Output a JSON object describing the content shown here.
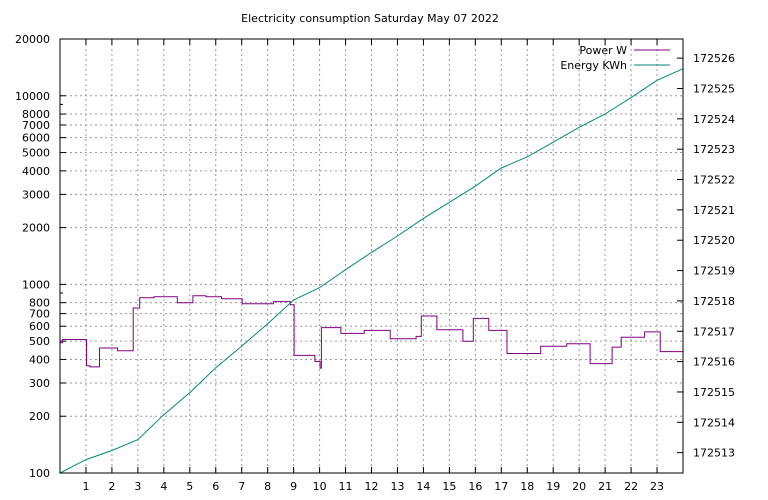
{
  "chart_data": {
    "type": "line",
    "title": "Electricity consumption Saturday May 07 2022",
    "xlabel": "",
    "ylabel": "",
    "y2label": "",
    "x_ticks": [
      "1",
      "2",
      "3",
      "4",
      "5",
      "6",
      "7",
      "8",
      "9",
      "10",
      "11",
      "12",
      "13",
      "14",
      "15",
      "16",
      "17",
      "18",
      "19",
      "20",
      "21",
      "22",
      "23"
    ],
    "xlim": [
      0,
      24
    ],
    "ylim": [
      100,
      20000
    ],
    "y_scale": "log",
    "y_ticks": [
      {
        "v": 100,
        "label": "100"
      },
      {
        "v": 200,
        "label": "200"
      },
      {
        "v": 300,
        "label": "300"
      },
      {
        "v": 400,
        "label": "400"
      },
      {
        "v": 500,
        "label": "500"
      },
      {
        "v": 600,
        "label": "600"
      },
      {
        "v": 700,
        "label": "700"
      },
      {
        "v": 800,
        "label": "800"
      },
      {
        "v": 1000,
        "label": "1000"
      },
      {
        "v": 2000,
        "label": "2000"
      },
      {
        "v": 3000,
        "label": "3000"
      },
      {
        "v": 4000,
        "label": "4000"
      },
      {
        "v": 5000,
        "label": "5000"
      },
      {
        "v": 6000,
        "label": "6000"
      },
      {
        "v": 7000,
        "label": "7000"
      },
      {
        "v": 8000,
        "label": "8000"
      },
      {
        "v": 10000,
        "label": "10000"
      },
      {
        "v": 20000,
        "label": "20000"
      }
    ],
    "y2lim": [
      172512.33,
      172526.63
    ],
    "y2_ticks": [
      "172513",
      "172514",
      "172515",
      "172516",
      "172517",
      "172518",
      "172519",
      "172520",
      "172521",
      "172522",
      "172523",
      "172524",
      "172525",
      "172526"
    ],
    "grid": true,
    "legend": {
      "position": "top-right",
      "entries": [
        "Power W",
        "Energy KWh"
      ]
    },
    "series": [
      {
        "name": "Power W",
        "axis": "left",
        "color": "#800080",
        "render": "step",
        "points": [
          [
            0,
            490
          ],
          [
            0.1,
            510
          ],
          [
            1,
            510
          ],
          [
            1.02,
            370
          ],
          [
            1.15,
            365
          ],
          [
            1.5,
            365
          ],
          [
            1.52,
            460
          ],
          [
            2.2,
            460
          ],
          [
            2.22,
            445
          ],
          [
            2.8,
            445
          ],
          [
            2.82,
            750
          ],
          [
            3.05,
            750
          ],
          [
            3.07,
            850
          ],
          [
            3.6,
            850
          ],
          [
            3.62,
            860
          ],
          [
            4.5,
            860
          ],
          [
            4.52,
            800
          ],
          [
            5.1,
            800
          ],
          [
            5.12,
            870
          ],
          [
            5.6,
            870
          ],
          [
            5.62,
            860
          ],
          [
            6.2,
            860
          ],
          [
            6.22,
            840
          ],
          [
            7,
            840
          ],
          [
            7.02,
            790
          ],
          [
            8.2,
            790
          ],
          [
            8.22,
            810
          ],
          [
            8.85,
            810
          ],
          [
            8.87,
            780
          ],
          [
            9,
            780
          ],
          [
            9.02,
            420
          ],
          [
            9.8,
            420
          ],
          [
            9.82,
            390
          ],
          [
            10,
            390
          ],
          [
            10.02,
            360
          ],
          [
            10.05,
            360
          ],
          [
            10.07,
            590
          ],
          [
            10.8,
            590
          ],
          [
            10.82,
            550
          ],
          [
            11.7,
            550
          ],
          [
            11.72,
            570
          ],
          [
            12.7,
            570
          ],
          [
            12.72,
            515
          ],
          [
            13.7,
            515
          ],
          [
            13.72,
            530
          ],
          [
            13.9,
            530
          ],
          [
            13.92,
            680
          ],
          [
            14.5,
            680
          ],
          [
            14.52,
            575
          ],
          [
            15.5,
            575
          ],
          [
            15.52,
            500
          ],
          [
            15.9,
            500
          ],
          [
            15.92,
            660
          ],
          [
            16.5,
            660
          ],
          [
            16.52,
            570
          ],
          [
            17.2,
            570
          ],
          [
            17.22,
            430
          ],
          [
            18.5,
            430
          ],
          [
            18.52,
            470
          ],
          [
            19.5,
            470
          ],
          [
            19.52,
            485
          ],
          [
            20.4,
            485
          ],
          [
            20.42,
            380
          ],
          [
            21.25,
            380
          ],
          [
            21.27,
            465
          ],
          [
            21.6,
            465
          ],
          [
            21.62,
            525
          ],
          [
            22.5,
            525
          ],
          [
            22.52,
            560
          ],
          [
            23.1,
            560
          ],
          [
            23.12,
            440
          ],
          [
            24,
            440
          ]
        ]
      },
      {
        "name": "Energy KWh",
        "axis": "right",
        "color": "#008b72",
        "render": "line",
        "points": [
          [
            0,
            172512.33
          ],
          [
            1,
            172512.77
          ],
          [
            2,
            172513.07
          ],
          [
            3,
            172513.43
          ],
          [
            4,
            172514.25
          ],
          [
            5,
            172514.98
          ],
          [
            6,
            172515.8
          ],
          [
            7,
            172516.51
          ],
          [
            8,
            172517.25
          ],
          [
            9,
            172518.03
          ],
          [
            10,
            172518.44
          ],
          [
            11,
            172519.03
          ],
          [
            12,
            172519.6
          ],
          [
            13,
            172520.14
          ],
          [
            14,
            172520.72
          ],
          [
            15,
            172521.25
          ],
          [
            16,
            172521.78
          ],
          [
            17,
            172522.38
          ],
          [
            18,
            172522.75
          ],
          [
            19,
            172523.23
          ],
          [
            20,
            172523.72
          ],
          [
            21,
            172524.16
          ],
          [
            22,
            172524.7
          ],
          [
            23,
            172525.27
          ],
          [
            24,
            172525.65
          ]
        ]
      }
    ]
  }
}
